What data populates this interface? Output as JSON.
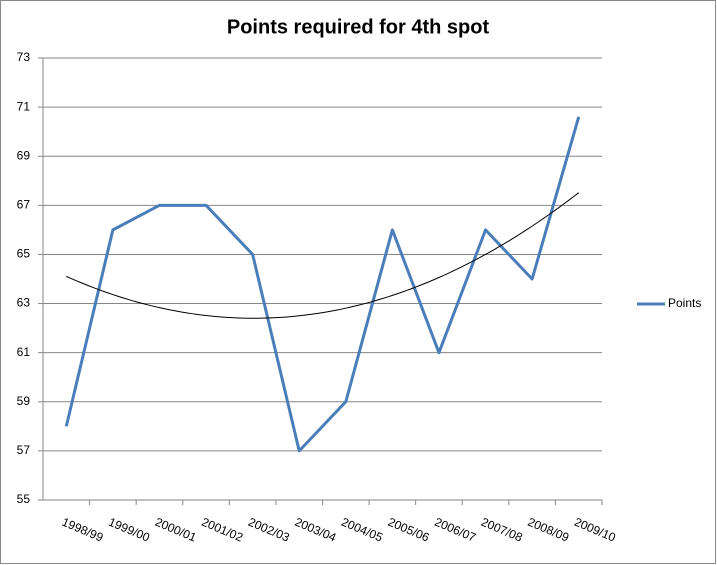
{
  "chart_data": {
    "type": "line",
    "title": "Points required for 4th spot",
    "categories": [
      "1998/99",
      "1999/00",
      "2000/01",
      "2001/02",
      "2002/03",
      "2003/04",
      "2004/05",
      "2005/06",
      "2006/07",
      "2007/08",
      "2008/09",
      "2009/10"
    ],
    "series": [
      {
        "name": "Points",
        "color": "#4a7ebb",
        "values": [
          58,
          66,
          67,
          67,
          65,
          57,
          59,
          66,
          61,
          66,
          64,
          70.6
        ]
      }
    ],
    "ylim": [
      55,
      73
    ],
    "yticks": [
      55,
      57,
      59,
      61,
      63,
      65,
      67,
      69,
      71,
      73
    ],
    "grid": true,
    "trendline": {
      "order": 2,
      "color": "#000000"
    },
    "legend": "right"
  }
}
